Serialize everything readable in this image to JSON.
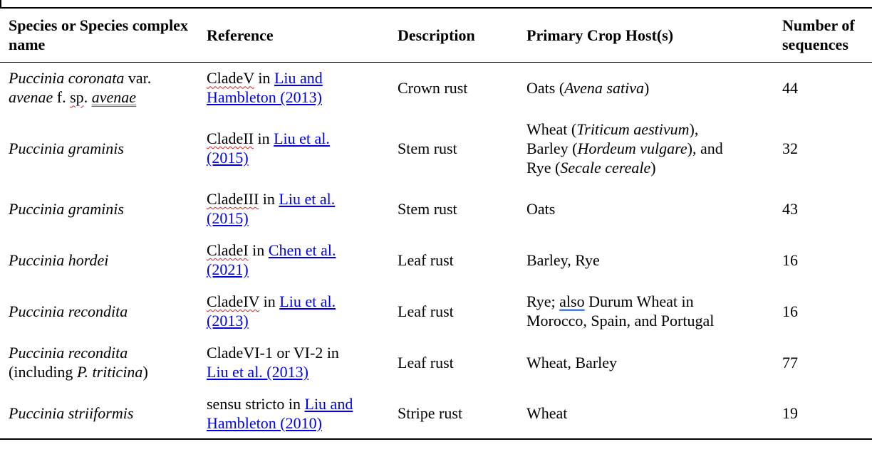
{
  "table": {
    "headers": {
      "species": "Species or Species complex name",
      "reference": "Reference",
      "description": "Description",
      "host": "Primary Crop Host(s)",
      "count": "Number of sequences"
    },
    "rows": [
      {
        "species": "Puccinia coronata var. avenae f. sp. avenae",
        "reference": "CladeV in Liu and Hambleton (2013)",
        "description": "Crown rust",
        "host": "Oats (Avena sativa)",
        "count": "44"
      },
      {
        "species": "Puccinia graminis",
        "reference": "CladeII in Liu et al. (2015)",
        "description": "Stem rust",
        "host": "Wheat (Triticum aestivum), Barley (Hordeum vulgare), and Rye (Secale cereale)",
        "count": "32"
      },
      {
        "species": "Puccinia graminis",
        "reference": "CladeIII in Liu et al. (2015)",
        "description": "Stem rust",
        "host": "Oats",
        "count": "43"
      },
      {
        "species": "Puccinia hordei",
        "reference": "CladeI in Chen et al. (2021)",
        "description": "Leaf rust",
        "host": "Barley, Rye",
        "count": "16"
      },
      {
        "species": "Puccinia recondita",
        "reference": "CladeIV in Liu et al. (2013)",
        "description": "Leaf rust",
        "host": "Rye; also Durum Wheat in Morocco, Spain, and Portugal",
        "count": "16"
      },
      {
        "species": "Puccinia recondita (including P. triticina)",
        "reference": "CladeVI-1 or VI-2 in Liu et al. (2013)",
        "description": "Leaf rust",
        "host": "Wheat, Barley",
        "count": "77"
      },
      {
        "species": "Puccinia striiformis",
        "reference": "sensu stricto in Liu and Hambleton (2010)",
        "description": "Stripe rust",
        "host": "Wheat",
        "count": "19"
      }
    ],
    "parts": {
      "r1_species_a": "Puccinia coronata",
      "r1_species_b": " var.",
      "r1_species_c": "avenae",
      "r1_species_d": " f. ",
      "r1_species_e": "sp",
      "r1_species_f": ". ",
      "r1_species_g": "avenae",
      "r1_ref_clade": "CladeV",
      "r1_ref_in": " in ",
      "r1_ref_link_a": "Liu and",
      "r1_ref_link_b": "Hambleton (2013)",
      "r1_host_a": "Oats (",
      "r1_host_b": "Avena sativa",
      "r1_host_c": ")",
      "r2_ref_clade": "CladeII",
      "r2_ref_in": " in ",
      "r2_ref_link_a": "Liu et al.",
      "r2_ref_link_b": "(2015)",
      "r2_host_a": "Wheat (",
      "r2_host_b": "Triticum aestivum",
      "r2_host_c": "),",
      "r2_host_d": "Barley (",
      "r2_host_e": "Hordeum vulgare",
      "r2_host_f": "), and",
      "r2_host_g": "Rye (",
      "r2_host_h": "Secale cereale",
      "r2_host_i": ")",
      "r3_ref_clade": "CladeIII",
      "r3_ref_in": " in ",
      "r3_ref_link_a": "Liu et al.",
      "r3_ref_link_b": "(2015)",
      "r4_ref_clade": "CladeI",
      "r4_ref_in": " in ",
      "r4_ref_link_a": "Chen et al.",
      "r4_ref_link_b": "(2021)",
      "r5_ref_clade": "CladeIV",
      "r5_ref_in": " in ",
      "r5_ref_link_a": "Liu et al.",
      "r5_ref_link_b": "(2013)",
      "r5_host_a": "Rye; ",
      "r5_host_b": "also",
      "r5_host_c": " Durum Wheat in",
      "r5_host_d": "Morocco, Spain, and Portugal",
      "r6_species_a": "Puccinia recondita",
      "r6_species_b": "(including ",
      "r6_species_c": "P. triticina",
      "r6_species_d": ")",
      "r6_ref_a": "CladeVI-1 or VI-2 in",
      "r6_ref_link": "Liu et al. (2013)",
      "r7_ref_a": "sensu stricto in ",
      "r7_ref_link_a": "Liu and",
      "r7_ref_link_b": "Hambleton (2010)"
    }
  }
}
